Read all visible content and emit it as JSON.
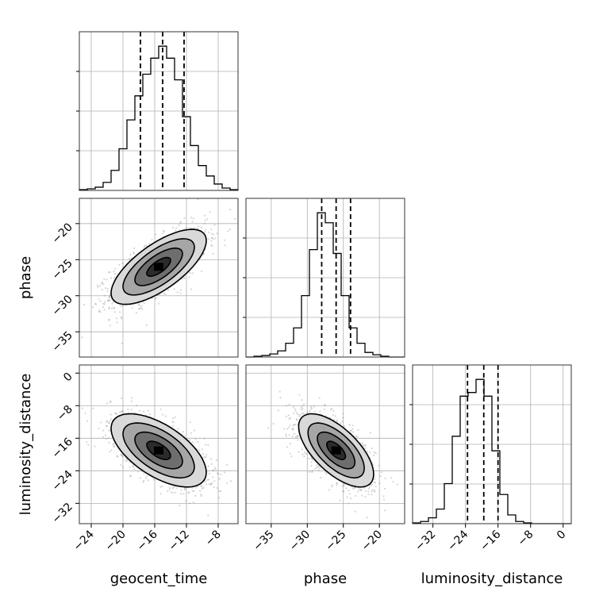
{
  "chart_data": {
    "type": "corner",
    "parameters": [
      "geocent_time",
      "phase",
      "luminosity_distance"
    ],
    "axis_labels": {
      "geocent_time": "geocent_time",
      "phase": "phase",
      "luminosity_distance": "luminosity_distance"
    },
    "ranges": {
      "geocent_time": [
        -25.5,
        -5.5
      ],
      "phase": [
        -38.5,
        -16.5
      ],
      "luminosity_distance": [
        -37.0,
        2.0
      ]
    },
    "ticks": {
      "geocent_time": [
        -24,
        -20,
        -16,
        -12,
        -8
      ],
      "phase_x": [
        -35,
        -30,
        -25,
        -20
      ],
      "phase_y": [
        -20,
        -25,
        -30,
        -35
      ],
      "luminosity_distance_x": [
        -32,
        -24,
        -16,
        -8,
        0
      ],
      "luminosity_distance_y": [
        0,
        -8,
        -16,
        -24,
        -32
      ]
    },
    "quantiles": {
      "geocent_time": [
        -17.8,
        -15.0,
        -12.3
      ],
      "phase": [
        -28.0,
        -26.0,
        -24.0
      ],
      "luminosity_distance": [
        -23.5,
        -19.5,
        -16.0
      ]
    },
    "histograms": {
      "geocent_time": {
        "bin_edges": [
          -25.5,
          -24.5,
          -23.5,
          -22.5,
          -21.5,
          -20.5,
          -19.5,
          -18.5,
          -17.5,
          -16.5,
          -15.5,
          -14.5,
          -13.5,
          -12.5,
          -11.5,
          -10.5,
          -9.5,
          -8.5,
          -7.5,
          -6.5,
          -5.5
        ],
        "counts": [
          1,
          2,
          4,
          10,
          25,
          52,
          88,
          118,
          145,
          165,
          180,
          165,
          138,
          92,
          56,
          31,
          18,
          8,
          3,
          1
        ]
      },
      "phase": {
        "bin_edges": [
          -38.5,
          -37.4,
          -36.3,
          -35.2,
          -34.1,
          -33.0,
          -31.9,
          -30.8,
          -29.7,
          -28.6,
          -27.5,
          -26.4,
          -25.3,
          -24.2,
          -23.1,
          -22.0,
          -20.9,
          -19.8,
          -18.7,
          -17.6,
          -16.5
        ],
        "counts": [
          0,
          1,
          2,
          4,
          8,
          18,
          38,
          80,
          140,
          188,
          175,
          135,
          80,
          38,
          18,
          6,
          3,
          1,
          0,
          0
        ]
      },
      "luminosity_distance": {
        "bin_edges": [
          -37.0,
          -35.05,
          -33.1,
          -31.15,
          -29.2,
          -27.25,
          -25.3,
          -23.35,
          -21.4,
          -19.45,
          -17.5,
          -15.55,
          -13.6,
          -11.65,
          -9.7,
          -7.75,
          -5.8,
          -3.85,
          -1.9,
          0.05,
          2.0
        ],
        "counts": [
          1,
          3,
          8,
          20,
          55,
          120,
          175,
          180,
          198,
          175,
          100,
          40,
          12,
          3,
          1,
          0,
          0,
          0,
          0,
          0
        ]
      }
    },
    "joint_2d": {
      "phase_vs_geocent_time": {
        "mean": [
          -15.5,
          -26.0
        ],
        "sigma": [
          3.0,
          2.6
        ],
        "correlation": 0.7
      },
      "luminosity_distance_vs_geocent_time": {
        "mean": [
          -15.5,
          -19.0
        ],
        "sigma": [
          3.0,
          4.5
        ],
        "correlation": -0.6
      },
      "luminosity_distance_vs_phase": {
        "mean": [
          -26.0,
          -19.0
        ],
        "sigma": [
          2.6,
          4.5
        ],
        "correlation": -0.65
      }
    },
    "contour_levels_sigma": [
      0.5,
      1.0,
      1.5,
      2.0
    ],
    "grid": true
  }
}
